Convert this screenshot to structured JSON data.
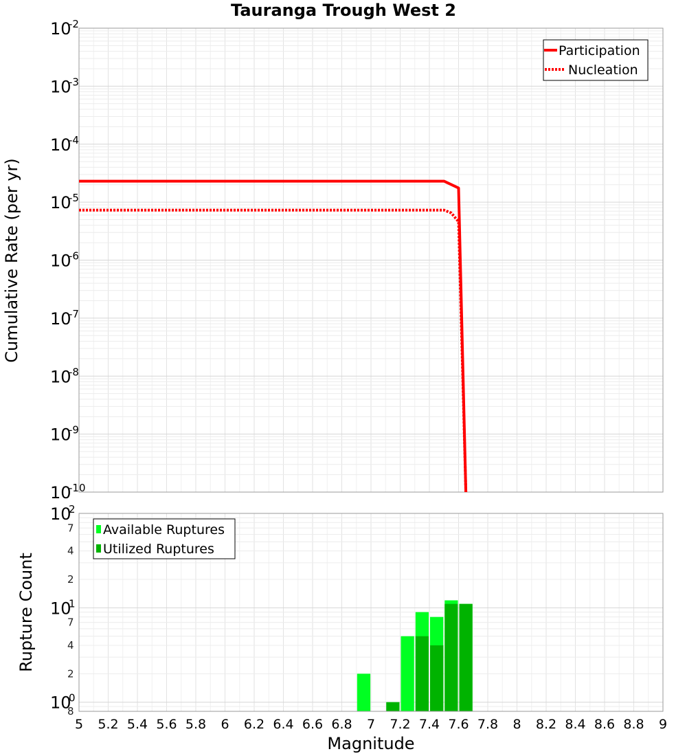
{
  "chart_data": [
    {
      "type": "line",
      "title": "Tauranga Trough West 2",
      "xlabel": "Magnitude",
      "ylabel": "Cumulative Rate (per yr)",
      "yscale": "log",
      "xlim": [
        5,
        9
      ],
      "ylim": [
        1e-10,
        0.01
      ],
      "grid": true,
      "legend_position": "top-right",
      "y_decades": [
        {
          "base": "10",
          "exp": "-2",
          "value": 0.01
        },
        {
          "base": "10",
          "exp": "-3",
          "value": 0.001
        },
        {
          "base": "10",
          "exp": "-4",
          "value": 0.0001
        },
        {
          "base": "10",
          "exp": "-5",
          "value": 1e-05
        },
        {
          "base": "10",
          "exp": "-6",
          "value": 1e-06
        },
        {
          "base": "10",
          "exp": "-7",
          "value": 1e-07
        },
        {
          "base": "10",
          "exp": "-8",
          "value": 1e-08
        },
        {
          "base": "10",
          "exp": "-9",
          "value": 1e-09
        },
        {
          "base": "10",
          "exp": "-10",
          "value": 1e-10
        }
      ],
      "series": [
        {
          "name": "Participation",
          "style": "solid",
          "color": "#ff0000",
          "x": [
            5.0,
            7.5,
            7.6,
            7.65
          ],
          "y": [
            2.3e-05,
            2.3e-05,
            1.75e-05,
            1e-10
          ]
        },
        {
          "name": "Nucleation",
          "style": "dotted",
          "color": "#ff0000",
          "x": [
            5.0,
            7.5,
            7.55,
            7.6,
            7.65
          ],
          "y": [
            7.3e-06,
            7.3e-06,
            6.5e-06,
            4.6e-06,
            1e-10
          ]
        }
      ]
    },
    {
      "type": "bar",
      "xlabel": "Magnitude",
      "ylabel": "Rupture Count",
      "yscale": "log",
      "xlim": [
        5,
        9
      ],
      "ylim": [
        0.8,
        100
      ],
      "grid": true,
      "legend_position": "top-left",
      "x_ticks": [
        "5",
        "5.2",
        "5.4",
        "5.6",
        "5.8",
        "6",
        "6.2",
        "6.4",
        "6.6",
        "6.8",
        "7",
        "7.2",
        "7.4",
        "7.6",
        "7.8",
        "8",
        "8.2",
        "8.4",
        "8.6",
        "8.8",
        "9"
      ],
      "y_major": [
        {
          "base": "10",
          "exp": "2",
          "value": 100
        },
        {
          "base": "10",
          "exp": "1",
          "value": 10
        },
        {
          "base": "10",
          "exp": "0",
          "value": 1
        }
      ],
      "y_minor_labels": [
        {
          "label": "7",
          "value": 70
        },
        {
          "label": "4",
          "value": 40
        },
        {
          "label": "2",
          "value": 20
        },
        {
          "label": "7",
          "value": 7
        },
        {
          "label": "4",
          "value": 4
        },
        {
          "label": "2",
          "value": 2
        },
        {
          "label": "8",
          "value": 0.8
        }
      ],
      "bin_width": 0.1,
      "series": [
        {
          "name": "Available Ruptures",
          "color": "#00ff22",
          "x": [
            6.95,
            7.15,
            7.25,
            7.35,
            7.45,
            7.55,
            7.65
          ],
          "values": [
            2,
            1,
            5,
            9,
            8,
            12,
            11
          ]
        },
        {
          "name": "Utilized Ruptures",
          "color": "#00b300",
          "x": [
            6.95,
            7.15,
            7.25,
            7.35,
            7.45,
            7.55,
            7.65
          ],
          "values": [
            0,
            1,
            0,
            5,
            4,
            11,
            11
          ]
        }
      ]
    }
  ]
}
